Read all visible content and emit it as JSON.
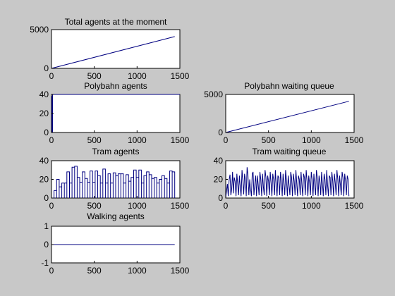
{
  "figure": {
    "background": "#c8c8c8",
    "line_color": "#000080"
  },
  "chart_data": [
    {
      "id": "total",
      "type": "line",
      "title": "Total agents at the moment",
      "xlim": [
        0,
        1500
      ],
      "ylim": [
        0,
        5000
      ],
      "xticks": [
        0,
        500,
        1000,
        1500
      ],
      "yticks": [
        0,
        5000
      ],
      "series": [
        {
          "x": [
            0,
            1440
          ],
          "y": [
            0,
            4100
          ]
        }
      ]
    },
    {
      "id": "polyagents",
      "type": "line",
      "title": "Polybahn agents",
      "xlim": [
        0,
        1500
      ],
      "ylim": [
        0,
        40
      ],
      "xticks": [
        0,
        500,
        1000,
        1500
      ],
      "yticks": [
        0,
        20,
        40
      ],
      "series": [
        {
          "x": [
            0,
            5,
            5,
            8,
            8,
            12,
            12,
            1500
          ],
          "y": [
            0,
            0,
            38,
            38,
            0,
            0,
            40,
            40
          ]
        }
      ]
    },
    {
      "id": "polyqueue",
      "type": "line",
      "title": "Polybahn waiting queue",
      "xlim": [
        0,
        1500
      ],
      "ylim": [
        0,
        5000
      ],
      "xticks": [
        0,
        500,
        1000,
        1500
      ],
      "yticks": [
        0,
        5000
      ],
      "series": [
        {
          "x": [
            0,
            1440
          ],
          "y": [
            0,
            4100
          ]
        }
      ]
    },
    {
      "id": "tram",
      "type": "line",
      "title": "Tram agents",
      "xlim": [
        0,
        1500
      ],
      "ylim": [
        0,
        40
      ],
      "xticks": [
        0,
        500,
        1000,
        1500
      ],
      "yticks": [
        0,
        20,
        40
      ],
      "series": [
        {
          "step_starts": [
            0,
            30,
            60,
            90,
            120,
            150,
            180,
            210,
            240,
            270,
            300,
            330,
            360,
            390,
            420,
            450,
            480,
            510,
            540,
            570,
            600,
            630,
            660,
            690,
            720,
            750,
            780,
            810,
            840,
            870,
            900,
            930,
            960,
            990,
            1020,
            1050,
            1080,
            1110,
            1140,
            1170,
            1200,
            1230,
            1260,
            1290,
            1320,
            1350,
            1380,
            1410
          ],
          "levels": [
            0,
            8,
            20,
            12,
            16,
            16,
            28,
            16,
            33,
            34,
            22,
            17,
            28,
            21,
            17,
            29,
            17,
            29,
            24,
            16,
            31,
            16,
            26,
            16,
            27,
            24,
            26,
            26,
            16,
            25,
            18,
            22,
            30,
            22,
            30,
            16,
            24,
            28,
            25,
            21,
            22,
            16,
            20,
            24,
            21,
            16,
            29,
            28
          ],
          "x_end": 1440
        }
      ]
    },
    {
      "id": "tramqueue",
      "type": "line",
      "title": "Tram waiting queue",
      "xlim": [
        0,
        1500
      ],
      "ylim": [
        0,
        40
      ],
      "xticks": [
        0,
        500,
        1000,
        1500
      ],
      "yticks": [
        0,
        20,
        40
      ],
      "series": [
        {
          "x": [
            0,
            10,
            20,
            30,
            40,
            50,
            60,
            70,
            80,
            90,
            100,
            110,
            120,
            130,
            140,
            150,
            160,
            170,
            180,
            190,
            200,
            210,
            220,
            230,
            240,
            250,
            260,
            270,
            280,
            290,
            300,
            310,
            320,
            330,
            340,
            350,
            360,
            370,
            380,
            390,
            400,
            410,
            420,
            430,
            440,
            450,
            460,
            470,
            480,
            490,
            500,
            510,
            520,
            530,
            540,
            550,
            560,
            570,
            580,
            590,
            600,
            610,
            620,
            630,
            640,
            650,
            660,
            670,
            680,
            690,
            700,
            710,
            720,
            730,
            740,
            750,
            760,
            770,
            780,
            790,
            800,
            810,
            820,
            830,
            840,
            850,
            860,
            870,
            880,
            890,
            900,
            910,
            920,
            930,
            940,
            950,
            960,
            970,
            980,
            990,
            1000,
            1010,
            1020,
            1030,
            1040,
            1050,
            1060,
            1070,
            1080,
            1090,
            1100,
            1110,
            1120,
            1130,
            1140,
            1150,
            1160,
            1170,
            1180,
            1190,
            1200,
            1210,
            1220,
            1230,
            1240,
            1250,
            1260,
            1270,
            1280,
            1290,
            1300,
            1310,
            1320,
            1330,
            1340,
            1350,
            1360,
            1370,
            1380,
            1390,
            1400,
            1410,
            1420,
            1430,
            1440
          ],
          "y": [
            0,
            8,
            15,
            2,
            20,
            25,
            3,
            10,
            28,
            5,
            22,
            18,
            2,
            26,
            15,
            3,
            24,
            12,
            2,
            30,
            18,
            4,
            26,
            20,
            2,
            33,
            25,
            3,
            20,
            10,
            2,
            26,
            28,
            3,
            16,
            24,
            2,
            24,
            14,
            3,
            28,
            20,
            2,
            26,
            12,
            3,
            30,
            22,
            2,
            24,
            18,
            3,
            28,
            16,
            2,
            26,
            20,
            3,
            30,
            14,
            2,
            24,
            22,
            3,
            28,
            18,
            2,
            26,
            16,
            3,
            30,
            20,
            2,
            24,
            14,
            3,
            28,
            22,
            2,
            26,
            18,
            3,
            30,
            16,
            2,
            24,
            20,
            3,
            28,
            14,
            2,
            26,
            22,
            3,
            30,
            18,
            2,
            24,
            16,
            3,
            28,
            20,
            2,
            26,
            14,
            3,
            30,
            22,
            2,
            24,
            18,
            3,
            28,
            16,
            2,
            26,
            20,
            3,
            30,
            14,
            2,
            24,
            22,
            3,
            28,
            18,
            2,
            26,
            16,
            3,
            30,
            20,
            2,
            24,
            14,
            3,
            28,
            22,
            2,
            26,
            18,
            3,
            24,
            20,
            2
          ]
        }
      ]
    },
    {
      "id": "walking",
      "type": "line",
      "title": "Walking agents",
      "xlim": [
        0,
        1500
      ],
      "ylim": [
        -1,
        1
      ],
      "xticks": [
        0,
        500,
        1000,
        1500
      ],
      "yticks": [
        -1,
        0,
        1
      ],
      "series": [
        {
          "x": [
            0,
            1440
          ],
          "y": [
            0,
            0
          ]
        }
      ]
    }
  ]
}
